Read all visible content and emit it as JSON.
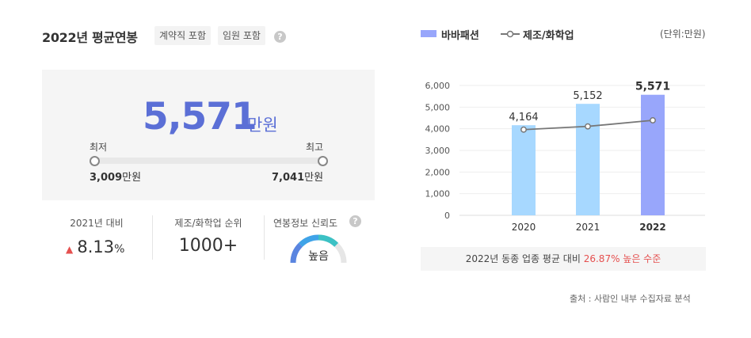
{
  "header": {
    "title": "2022년 평균연봉",
    "tags": [
      "계약직 포함",
      "임원 포함"
    ],
    "help_icon": "question-icon"
  },
  "salary": {
    "average": "5,571",
    "unit": "만원",
    "min_label": "최저",
    "max_label": "최고",
    "min_value": "3,009",
    "max_value": "7,041",
    "value_unit": "만원"
  },
  "stats": {
    "yoy_label": "2021년 대비",
    "yoy_value": "8.13",
    "yoy_unit": "%",
    "yoy_direction": "up",
    "rank_label": "제조/화학업 순위",
    "rank_value": "1000+",
    "reliability_label": "연봉정보 신뢰도",
    "reliability_value": "높음",
    "reliability_level": 0.75
  },
  "chart": {
    "legend_bar": "바바패션",
    "legend_line": "제조/화학업",
    "unit_note": "(단위:만원)",
    "comparison_prefix": "2022년 동종 업종 평균 대비",
    "comparison_highlight": "26.87% 높은 수준",
    "source": "출처 : 사람인 내부 수집자료 분석",
    "colors": {
      "bar": "#a7d8ff",
      "bar_highlight": "#98a6fb",
      "line": "#777777"
    }
  },
  "chart_data": {
    "type": "bar",
    "categories": [
      "2020",
      "2021",
      "2022"
    ],
    "series": [
      {
        "name": "바바패션",
        "values": [
          4164,
          5152,
          5571
        ]
      },
      {
        "name": "제조/화학업",
        "values": [
          3960,
          4110,
          4390
        ]
      }
    ],
    "data_labels": [
      "4,164",
      "5,152",
      "5,571"
    ],
    "yticks": [
      "0",
      "1,000",
      "2,000",
      "3,000",
      "4,000",
      "5,000",
      "6,000"
    ],
    "ylim": [
      0,
      6000
    ],
    "grid": true,
    "legend_position": "top-left"
  }
}
